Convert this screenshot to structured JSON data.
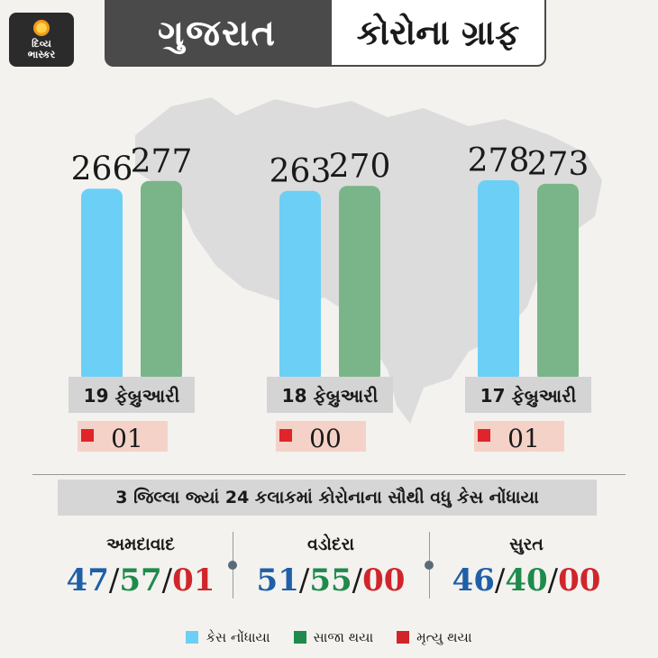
{
  "brand": {
    "line1": "દિવ્ય",
    "line2": "ભાસ્કર"
  },
  "header": {
    "left": "ગુજરાત",
    "right": "કોરોના ગ્રાફ"
  },
  "colors": {
    "cases": "#6ccff6",
    "recovered": "#7ab58a",
    "deaths": "#e0242a",
    "death_bg": "#f4d2c8"
  },
  "chart_data": {
    "type": "bar",
    "categories": [
      "19 ફેબ્રુઆરી",
      "18 ફેબ્રુઆરી",
      "17 ફેબ્રુઆરી"
    ],
    "series": [
      {
        "name": "કેસ નોંધાયા",
        "values": [
          266,
          263,
          278
        ]
      },
      {
        "name": "સાજા થયા",
        "values": [
          277,
          270,
          273
        ]
      }
    ],
    "deaths": [
      "01",
      "00",
      "01"
    ],
    "value_labels": {
      "cases": [
        "266",
        "263",
        "278"
      ],
      "recovered": [
        "277",
        "270",
        "273"
      ]
    }
  },
  "subtitle": "3 જિલ્લા જ્યાં 24 કલાકમાં કોરોનાના સૌથી વધુ કેસ નોંધાયા",
  "districts": [
    {
      "name": "અમદાવાદ",
      "cases": "47",
      "recovered": "57",
      "deaths": "01"
    },
    {
      "name": "વડોદરા",
      "cases": "51",
      "recovered": "55",
      "deaths": "00"
    },
    {
      "name": "સુરત",
      "cases": "46",
      "recovered": "40",
      "deaths": "00"
    }
  ],
  "legend": [
    {
      "label": "કેસ નોંધાયા",
      "color": "#6ccff6"
    },
    {
      "label": "સાજા થયા",
      "color": "#1f8a4c"
    },
    {
      "label": "મૃત્યુ થયા",
      "color": "#d0262b"
    }
  ]
}
